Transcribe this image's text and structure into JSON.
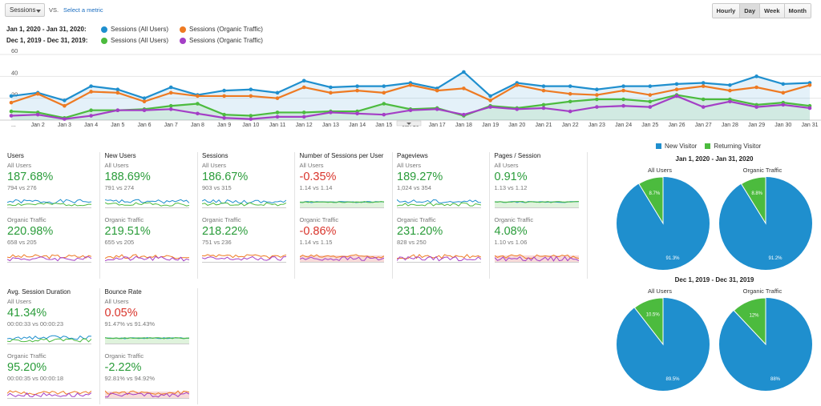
{
  "toolbar": {
    "metric_selector": "Sessions",
    "vs_label": "VS.",
    "select_metric": "Select a metric",
    "tabs": [
      "Hourly",
      "Day",
      "Week",
      "Month"
    ],
    "active_tab": "Day"
  },
  "legend": {
    "rows": [
      {
        "range": "Jan 1, 2020 - Jan 31, 2020:",
        "items": [
          {
            "label": "Sessions (All Users)",
            "color": "#1f8fce"
          },
          {
            "label": "Sessions (Organic Traffic)",
            "color": "#ee7a22"
          }
        ]
      },
      {
        "range": "Dec 1, 2019 - Dec 31, 2019:",
        "items": [
          {
            "label": "Sessions (All Users)",
            "color": "#4cbb3e"
          },
          {
            "label": "Sessions (Organic Traffic)",
            "color": "#a43fc6"
          }
        ]
      }
    ]
  },
  "chart_data": {
    "type": "line",
    "x": [
      "...",
      "Jan 2",
      "Jan 3",
      "Jan 4",
      "Jan 5",
      "Jan 6",
      "Jan 7",
      "Jan 8",
      "Jan 9",
      "Jan 10",
      "Jan 11",
      "Jan 12",
      "Jan 13",
      "Jan 14",
      "Jan 15",
      "Jan 16",
      "Jan 17",
      "Jan 18",
      "Jan 19",
      "Jan 20",
      "Jan 21",
      "Jan 22",
      "Jan 23",
      "Jan 24",
      "Jan 25",
      "Jan 26",
      "Jan 27",
      "Jan 28",
      "Jan 29",
      "Jan 30",
      "Jan 31"
    ],
    "yticks": [
      20,
      40,
      60
    ],
    "ylim": [
      0,
      60
    ],
    "grid": true,
    "series": [
      {
        "name": "Sessions (All Users)",
        "color": "#1f8fce",
        "fill": true,
        "values": [
          22,
          25,
          18,
          31,
          28,
          20,
          30,
          23,
          27,
          28,
          25,
          36,
          30,
          31,
          31,
          34,
          29,
          44,
          22,
          34,
          31,
          31,
          28,
          31,
          31,
          33,
          34,
          32,
          40,
          33,
          34
        ]
      },
      {
        "name": "Sessions (Organic Traffic)",
        "color": "#ee7a22",
        "fill": false,
        "values": [
          16,
          24,
          13,
          26,
          25,
          17,
          25,
          22,
          22,
          22,
          20,
          30,
          25,
          27,
          25,
          32,
          27,
          29,
          18,
          32,
          27,
          24,
          23,
          27,
          23,
          28,
          31,
          27,
          30,
          25,
          32
        ]
      },
      {
        "name": "Sessions (All Users)",
        "color": "#4cbb3e",
        "fill": true,
        "values": [
          8,
          7,
          2,
          9,
          9,
          10,
          13,
          15,
          5,
          4,
          7,
          7,
          8,
          8,
          15,
          10,
          11,
          4,
          13,
          11,
          14,
          17,
          19,
          19,
          17,
          23,
          19,
          19,
          14,
          16,
          13
        ]
      },
      {
        "name": "Sessions (Organic Traffic)",
        "color": "#a43fc6",
        "fill": false,
        "values": [
          4,
          5,
          1,
          4,
          9,
          9,
          10,
          6,
          2,
          1,
          3,
          3,
          7,
          6,
          5,
          9,
          10,
          5,
          12,
          10,
          11,
          8,
          12,
          13,
          12,
          22,
          12,
          17,
          12,
          14,
          11
        ]
      }
    ]
  },
  "cards_row1": [
    {
      "title": "Users",
      "all_seg": "All Users",
      "all_pct": "187.68%",
      "all_dir": "up",
      "all_cmp": "794 vs 276",
      "org_seg": "Organic Traffic",
      "org_pct": "220.98%",
      "org_dir": "up",
      "org_cmp": "658 vs 205"
    },
    {
      "title": "New Users",
      "all_seg": "All Users",
      "all_pct": "188.69%",
      "all_dir": "up",
      "all_cmp": "791 vs 274",
      "org_seg": "Organic Traffic",
      "org_pct": "219.51%",
      "org_dir": "up",
      "org_cmp": "655 vs 205"
    },
    {
      "title": "Sessions",
      "all_seg": "All Users",
      "all_pct": "186.67%",
      "all_dir": "up",
      "all_cmp": "903 vs 315",
      "org_seg": "Organic Traffic",
      "org_pct": "218.22%",
      "org_dir": "up",
      "org_cmp": "751 vs 236"
    },
    {
      "title": "Number of Sessions per User",
      "all_seg": "All Users",
      "all_pct": "-0.35%",
      "all_dir": "down",
      "all_cmp": "1.14 vs 1.14",
      "org_seg": "Organic Traffic",
      "org_pct": "-0.86%",
      "org_dir": "down",
      "org_cmp": "1.14 vs 1.15"
    },
    {
      "title": "Pageviews",
      "all_seg": "All Users",
      "all_pct": "189.27%",
      "all_dir": "up",
      "all_cmp": "1,024 vs 354",
      "org_seg": "Organic Traffic",
      "org_pct": "231.20%",
      "org_dir": "up",
      "org_cmp": "828 vs 250"
    },
    {
      "title": "Pages / Session",
      "all_seg": "All Users",
      "all_pct": "0.91%",
      "all_dir": "up",
      "all_cmp": "1.13 vs 1.12",
      "org_seg": "Organic Traffic",
      "org_pct": "4.08%",
      "org_dir": "up",
      "org_cmp": "1.10 vs 1.06"
    }
  ],
  "cards_row2": [
    {
      "title": "Avg. Session Duration",
      "all_seg": "All Users",
      "all_pct": "41.34%",
      "all_dir": "up",
      "all_cmp": "00:00:33 vs 00:00:23",
      "org_seg": "Organic Traffic",
      "org_pct": "95.20%",
      "org_dir": "up",
      "org_cmp": "00:00:35 vs 00:00:18"
    },
    {
      "title": "Bounce Rate",
      "all_seg": "All Users",
      "all_pct": "0.05%",
      "all_dir": "down",
      "all_cmp": "91.47% vs 91.43%",
      "org_seg": "Organic Traffic",
      "org_pct": "-2.22%",
      "org_dir": "up",
      "org_cmp": "92.81% vs 94.92%"
    }
  ],
  "pies": {
    "legend": [
      {
        "label": "New Visitor",
        "color": "#1f8fce"
      },
      {
        "label": "Returning Visitor",
        "color": "#4cbb3e"
      }
    ],
    "periods": [
      {
        "title": "Jan 1, 2020 - Jan 31, 2020",
        "charts": [
          {
            "segment": "All Users",
            "new_pct": 91.3,
            "ret_pct": 8.7,
            "new_label": "91.3%",
            "ret_label": "8.7%"
          },
          {
            "segment": "Organic Traffic",
            "new_pct": 91.2,
            "ret_pct": 8.8,
            "new_label": "91.2%",
            "ret_label": "8.8%"
          }
        ]
      },
      {
        "title": "Dec 1, 2019 - Dec 31, 2019",
        "charts": [
          {
            "segment": "All Users",
            "new_pct": 89.5,
            "ret_pct": 10.5,
            "new_label": "89.5%",
            "ret_label": "10.5%"
          },
          {
            "segment": "Organic Traffic",
            "new_pct": 88,
            "ret_pct": 12,
            "new_label": "88%",
            "ret_label": "12%"
          }
        ]
      }
    ]
  }
}
